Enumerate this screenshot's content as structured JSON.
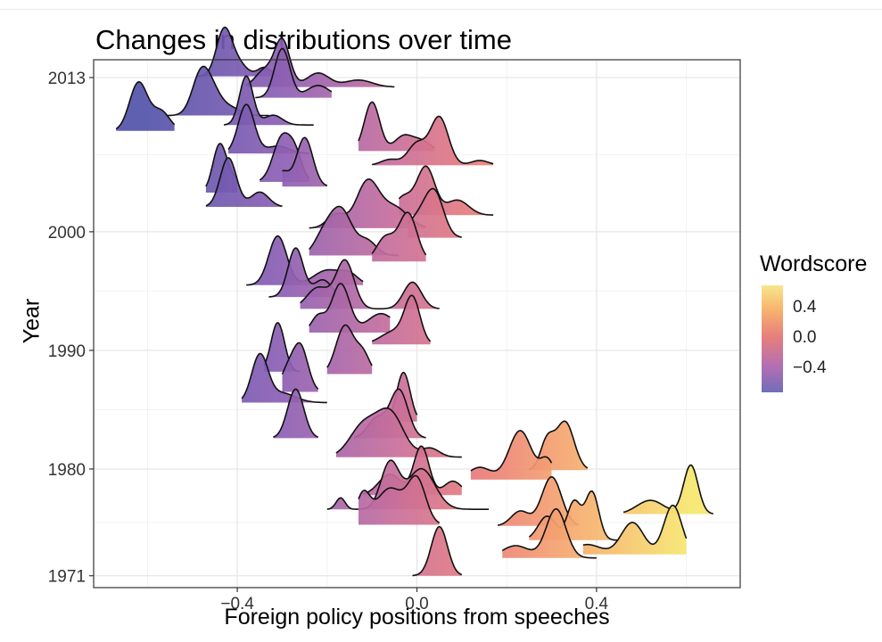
{
  "chart_data": {
    "type": "ridgeline",
    "title": "Changes in distributions over time",
    "xlabel": "Foreign policy positions from speeches",
    "ylabel": "Year",
    "xlim": [
      -0.72,
      0.72
    ],
    "ylim": [
      1970,
      2014.5
    ],
    "xticks": [
      -0.4,
      0.0,
      0.4
    ],
    "xtick_labels": [
      "−0.4",
      "0.0",
      "0.4"
    ],
    "yticks": [
      1971,
      1980,
      1990,
      2000,
      2013
    ],
    "ytick_labels": [
      "1971",
      "1980",
      "1990",
      "2000",
      "2013"
    ],
    "grid": true,
    "legend": {
      "title": "Wordscore",
      "position": "right",
      "labels": [
        "0.4",
        "0.0",
        "−0.4"
      ],
      "colors": [
        "#f6e78c",
        "#f7b56e",
        "#e77f7b",
        "#b46fb3",
        "#6f6eb8"
      ]
    },
    "series": [
      {
        "year": 1971,
        "peaks": [
          [
            0.05,
            0.018,
            1.0
          ]
        ],
        "xmin": -0.01,
        "xmax": 0.1
      },
      {
        "year": 1972.5,
        "peaks": [
          [
            0.31,
            0.022,
            1.0
          ],
          [
            0.22,
            0.03,
            0.25
          ]
        ],
        "xmin": 0.19,
        "xmax": 0.4
      },
      {
        "year": 1972.8,
        "peaks": [
          [
            0.57,
            0.02,
            1.0
          ],
          [
            0.48,
            0.025,
            0.65
          ],
          [
            0.38,
            0.03,
            0.2
          ]
        ],
        "xmin": 0.37,
        "xmax": 0.6
      },
      {
        "year": 1974.0,
        "peaks": [
          [
            0.39,
            0.015,
            1.0
          ],
          [
            0.35,
            0.015,
            0.8
          ],
          [
            0.29,
            0.02,
            0.5
          ]
        ],
        "xmin": 0.25,
        "xmax": 0.45
      },
      {
        "year": 1975.2,
        "peaks": [
          [
            0.3,
            0.022,
            1.0
          ],
          [
            0.23,
            0.02,
            0.3
          ]
        ],
        "xmin": 0.18,
        "xmax": 0.36
      },
      {
        "year": 1975.3,
        "peaks": [
          [
            0.0,
            0.02,
            0.6
          ],
          [
            -0.06,
            0.03,
            0.5
          ],
          [
            -0.12,
            0.015,
            0.4
          ]
        ],
        "xmin": -0.13,
        "xmax": 0.05
      },
      {
        "year": 1976.2,
        "peaks": [
          [
            0.61,
            0.016,
            1.0
          ],
          [
            0.52,
            0.03,
            0.28
          ]
        ],
        "xmin": 0.46,
        "xmax": 0.66
      },
      {
        "year": 1976.6,
        "peaks": [
          [
            -0.06,
            0.02,
            0.4
          ],
          [
            0.01,
            0.03,
            0.35
          ],
          [
            -0.17,
            0.01,
            0.1
          ]
        ],
        "xmin": -0.2,
        "xmax": 0.16
      },
      {
        "year": 1977.8,
        "peaks": [
          [
            0.01,
            0.017,
            0.7
          ],
          [
            0.08,
            0.02,
            0.2
          ],
          [
            -0.06,
            0.025,
            0.3
          ]
        ],
        "xmin": -0.12,
        "xmax": 0.1
      },
      {
        "year": 1979.1,
        "peaks": [
          [
            0.23,
            0.025,
            1.0
          ],
          [
            0.14,
            0.025,
            0.25
          ],
          [
            0.29,
            0.015,
            0.4
          ]
        ],
        "xmin": 0.12,
        "xmax": 0.3
      },
      {
        "year": 1979.9,
        "peaks": [
          [
            0.33,
            0.02,
            1.0
          ],
          [
            0.29,
            0.015,
            0.6
          ]
        ],
        "xmin": 0.25,
        "xmax": 0.38
      },
      {
        "year": 1981.0,
        "peaks": [
          [
            -0.06,
            0.03,
            0.5
          ],
          [
            -0.12,
            0.03,
            0.35
          ],
          [
            0.03,
            0.02,
            0.1
          ]
        ],
        "xmin": -0.18,
        "xmax": 0.1
      },
      {
        "year": 1982.6,
        "peaks": [
          [
            -0.27,
            0.018,
            1.0
          ]
        ],
        "xmin": -0.32,
        "xmax": -0.22
      },
      {
        "year": 1982.6,
        "peaks": [
          [
            -0.04,
            0.02,
            1.0
          ],
          [
            -0.09,
            0.02,
            0.4
          ]
        ],
        "xmin": -0.14,
        "xmax": 0.02
      },
      {
        "year": 1984.0,
        "peaks": [
          [
            -0.03,
            0.015,
            1.0
          ]
        ],
        "xmin": -0.07,
        "xmax": 0.0
      },
      {
        "year": 1985.6,
        "peaks": [
          [
            -0.35,
            0.018,
            1.0
          ],
          [
            -0.3,
            0.03,
            0.2
          ]
        ],
        "xmin": -0.39,
        "xmax": -0.2
      },
      {
        "year": 1986.5,
        "peaks": [
          [
            -0.26,
            0.017,
            1.0
          ],
          [
            -0.29,
            0.015,
            0.4
          ]
        ],
        "xmin": -0.3,
        "xmax": -0.22
      },
      {
        "year": 1988.0,
        "peaks": [
          [
            -0.16,
            0.02,
            1.0
          ],
          [
            -0.12,
            0.015,
            0.4
          ]
        ],
        "xmin": -0.2,
        "xmax": -0.1
      },
      {
        "year": 1988.2,
        "peaks": [
          [
            -0.31,
            0.015,
            1.0
          ]
        ],
        "xmin": -0.34,
        "xmax": -0.26
      },
      {
        "year": 1990.5,
        "peaks": [
          [
            -0.01,
            0.017,
            1.0
          ],
          [
            -0.05,
            0.03,
            0.3
          ]
        ],
        "xmin": -0.1,
        "xmax": 0.03
      },
      {
        "year": 1991.5,
        "peaks": [
          [
            -0.17,
            0.02,
            0.9
          ],
          [
            -0.08,
            0.03,
            0.35
          ],
          [
            -0.22,
            0.015,
            0.3
          ]
        ],
        "xmin": -0.24,
        "xmax": -0.06
      },
      {
        "year": 1993.5,
        "peaks": [
          [
            -0.16,
            0.02,
            0.9
          ],
          [
            -0.22,
            0.025,
            0.4
          ],
          [
            -0.01,
            0.02,
            0.5
          ]
        ],
        "xmin": -0.26,
        "xmax": 0.05
      },
      {
        "year": 1994.5,
        "peaks": [
          [
            -0.27,
            0.017,
            1.0
          ],
          [
            -0.21,
            0.02,
            0.35
          ]
        ],
        "xmin": -0.33,
        "xmax": -0.17
      },
      {
        "year": 1995.5,
        "peaks": [
          [
            -0.31,
            0.02,
            1.0
          ],
          [
            -0.2,
            0.03,
            0.3
          ],
          [
            -0.15,
            0.02,
            0.2
          ]
        ],
        "xmin": -0.38,
        "xmax": -0.12
      },
      {
        "year": 1997.5,
        "peaks": [
          [
            -0.02,
            0.02,
            1.0
          ],
          [
            -0.07,
            0.02,
            0.5
          ]
        ],
        "xmin": -0.1,
        "xmax": 0.02
      },
      {
        "year": 1998.0,
        "peaks": [
          [
            -0.17,
            0.025,
            1.0
          ],
          [
            -0.21,
            0.02,
            0.35
          ],
          [
            -0.11,
            0.02,
            0.3
          ]
        ],
        "xmin": -0.24,
        "xmax": -0.04
      },
      {
        "year": 1999.5,
        "peaks": [
          [
            0.04,
            0.02,
            1.0
          ],
          [
            0.01,
            0.02,
            0.4
          ],
          [
            -0.02,
            0.02,
            0.2
          ]
        ],
        "xmin": -0.02,
        "xmax": 0.1
      },
      {
        "year": 2000.3,
        "peaks": [
          [
            -0.11,
            0.025,
            1.0
          ],
          [
            -0.05,
            0.03,
            0.45
          ],
          [
            -0.18,
            0.02,
            0.3
          ]
        ],
        "xmin": -0.24,
        "xmax": 0.02
      },
      {
        "year": 2001.4,
        "peaks": [
          [
            0.02,
            0.02,
            0.8
          ],
          [
            -0.03,
            0.02,
            0.3
          ],
          [
            0.09,
            0.025,
            0.25
          ]
        ],
        "xmin": -0.04,
        "xmax": 0.17
      },
      {
        "year": 2002.1,
        "peaks": [
          [
            -0.42,
            0.018,
            1.0
          ],
          [
            -0.35,
            0.02,
            0.3
          ]
        ],
        "xmin": -0.47,
        "xmax": -0.3
      },
      {
        "year": 2003.3,
        "peaks": [
          [
            -0.44,
            0.015,
            1.0
          ],
          [
            -0.41,
            0.02,
            0.3
          ]
        ],
        "xmin": -0.47,
        "xmax": -0.4
      },
      {
        "year": 2003.8,
        "peaks": [
          [
            -0.25,
            0.018,
            1.0
          ],
          [
            -0.3,
            0.015,
            0.3
          ]
        ],
        "xmin": -0.3,
        "xmax": -0.2
      },
      {
        "year": 2004.2,
        "peaks": [
          [
            -0.3,
            0.02,
            1.0
          ],
          [
            -0.27,
            0.015,
            0.5
          ]
        ],
        "xmin": -0.35,
        "xmax": -0.24
      },
      {
        "year": 2005.6,
        "peaks": [
          [
            0.05,
            0.02,
            1.0
          ],
          [
            0.0,
            0.02,
            0.45
          ],
          [
            -0.06,
            0.02,
            0.12
          ],
          [
            0.14,
            0.02,
            0.1
          ]
        ],
        "xmin": -0.1,
        "xmax": 0.17
      },
      {
        "year": 2006.6,
        "peaks": [
          [
            -0.38,
            0.018,
            1.0
          ],
          [
            -0.31,
            0.025,
            0.15
          ]
        ],
        "xmin": -0.42,
        "xmax": -0.24
      },
      {
        "year": 2006.8,
        "peaks": [
          [
            -0.1,
            0.017,
            1.0
          ],
          [
            -0.03,
            0.02,
            0.3
          ],
          [
            0.01,
            0.02,
            0.2
          ]
        ],
        "xmin": -0.13,
        "xmax": 0.04
      },
      {
        "year": 2008.5,
        "peaks": [
          [
            -0.62,
            0.02,
            1.0
          ],
          [
            -0.57,
            0.02,
            0.4
          ]
        ],
        "xmin": -0.67,
        "xmax": -0.54
      },
      {
        "year": 2009.0,
        "peaks": [
          [
            -0.38,
            0.015,
            1.0
          ],
          [
            -0.32,
            0.02,
            0.2
          ]
        ],
        "xmin": -0.43,
        "xmax": -0.23
      },
      {
        "year": 2009.8,
        "peaks": [
          [
            -0.48,
            0.02,
            1.0
          ],
          [
            -0.45,
            0.02,
            0.4
          ],
          [
            -0.41,
            0.02,
            0.15
          ]
        ],
        "xmin": -0.56,
        "xmax": -0.33
      },
      {
        "year": 2011.3,
        "peaks": [
          [
            -0.3,
            0.017,
            1.0
          ],
          [
            -0.22,
            0.025,
            0.25
          ]
        ],
        "xmin": -0.36,
        "xmax": -0.19
      },
      {
        "year": 2012.2,
        "peaks": [
          [
            -0.3,
            0.017,
            1.0
          ],
          [
            -0.34,
            0.02,
            0.35
          ],
          [
            -0.22,
            0.025,
            0.3
          ],
          [
            -0.13,
            0.03,
            0.15
          ]
        ],
        "xmin": -0.38,
        "xmax": -0.05
      },
      {
        "year": 2013.1,
        "peaks": [
          [
            -0.43,
            0.017,
            1.0
          ],
          [
            -0.4,
            0.02,
            0.3
          ],
          [
            -0.34,
            0.015,
            0.2
          ]
        ],
        "xmin": -0.49,
        "xmax": -0.3
      }
    ]
  }
}
